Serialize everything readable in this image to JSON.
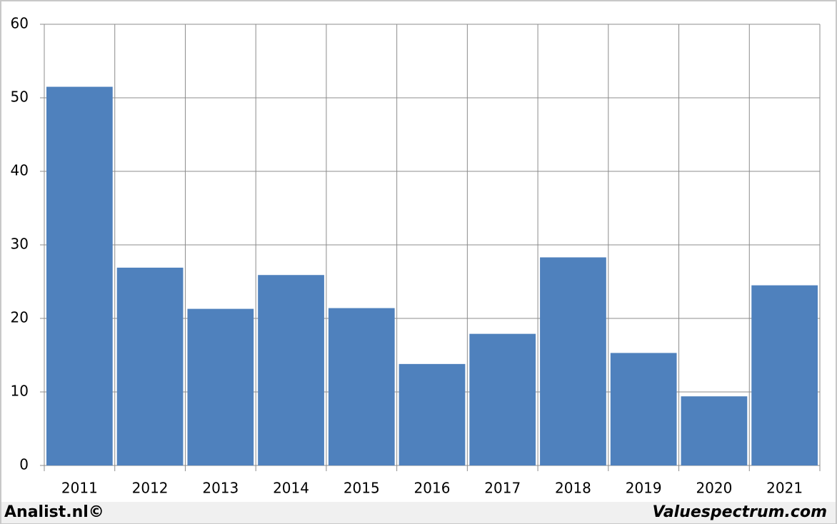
{
  "chart_data": {
    "type": "bar",
    "categories": [
      "2011",
      "2012",
      "2013",
      "2014",
      "2015",
      "2016",
      "2017",
      "2018",
      "2019",
      "2020",
      "2021"
    ],
    "values": [
      51.5,
      26.9,
      21.3,
      25.9,
      21.4,
      13.8,
      17.9,
      28.3,
      15.3,
      9.4,
      24.5
    ],
    "color": "#4f81bd",
    "ylim": [
      0,
      60
    ],
    "yticks": [
      0,
      10,
      20,
      30,
      40,
      50,
      60
    ],
    "grid": true
  },
  "footer": {
    "left": "Analist.nl©",
    "right": "Valuespectrum.com"
  }
}
